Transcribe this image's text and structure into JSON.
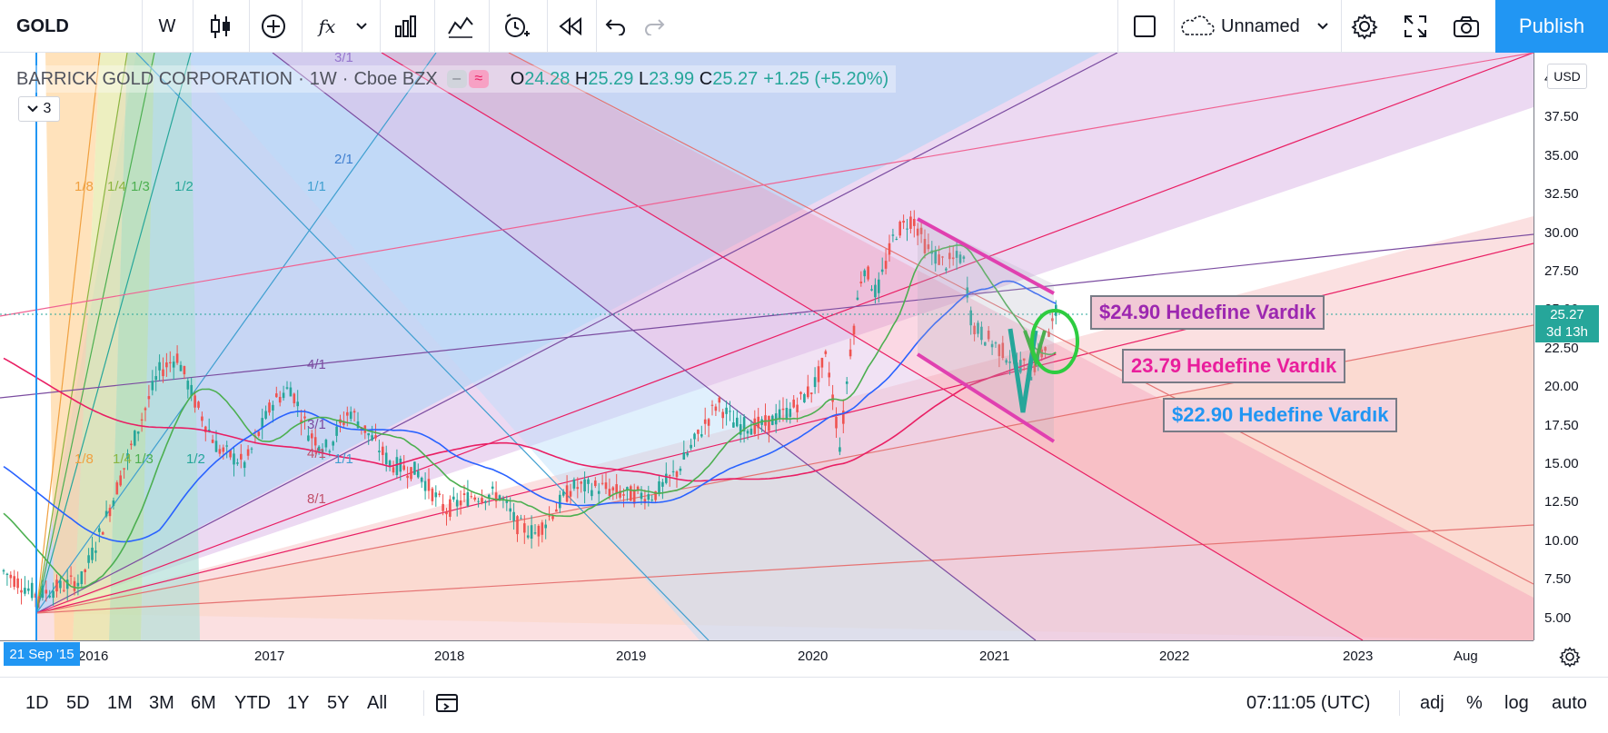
{
  "toolbar": {
    "symbol": "GOLD",
    "interval": "W",
    "candles_icon": "candles-icon",
    "compare_icon": "plus-circle-icon",
    "indicators_label": "fx",
    "layout_name": "Unnamed",
    "publish_label": "Publish"
  },
  "legend": {
    "name": "BARRICK GOLD CORPORATION",
    "dot1": "·",
    "interval": "1W",
    "dot2": "·",
    "exchange": "Cboe BZX",
    "o_label": "O",
    "o": "24.28",
    "h_label": "H",
    "h": "25.29",
    "l_label": "L",
    "l": "23.99",
    "c_label": "C",
    "c": "25.27",
    "change": "+1.25 (+5.20%)",
    "pill_left": "–",
    "pill_right": "≈",
    "collapse_count": "3"
  },
  "price_axis": {
    "currency": "USD",
    "ticks": [
      "40.00",
      "37.50",
      "35.00",
      "32.50",
      "30.00",
      "27.50",
      "25.00",
      "22.50",
      "20.00",
      "17.50",
      "15.00",
      "12.50",
      "10.00",
      "7.50",
      "5.00"
    ],
    "last_price": "25.27",
    "last_price_countdown": "3d 13h"
  },
  "time_axis": {
    "start_label": "21 Sep '15",
    "ticks": [
      "2016",
      "2017",
      "2018",
      "2019",
      "2020",
      "2021",
      "2022",
      "2023",
      "Aug"
    ]
  },
  "fan_labels": {
    "top_left": [
      "1/8",
      "1/4",
      "1/3",
      "1/2"
    ],
    "bottom_left": [
      "1/8",
      "1/4",
      "1/3",
      "1/2"
    ],
    "blue_top": [
      "3/1",
      "2/1",
      "1/1"
    ],
    "red_lower": [
      "4/1",
      "3/1",
      "4/1",
      "1/1",
      "8/1"
    ]
  },
  "annotations": {
    "target1": "$24.90 Hedefine Vardık",
    "target2": "23.79 Hedefine Vardık",
    "target3": "$22.90 Hedefine Vardık",
    "colors": {
      "target1": "#9c27b0",
      "target2": "#e91e9c",
      "target3": "#2196f3"
    }
  },
  "bottom_bar": {
    "ranges": [
      "1D",
      "5D",
      "1M",
      "3M",
      "6M",
      "YTD",
      "1Y",
      "5Y",
      "All"
    ],
    "clock": "07:11:05 (UTC)",
    "adj": "adj",
    "pct": "%",
    "log": "log",
    "auto": "auto"
  },
  "colors": {
    "up": "#26a69a",
    "down": "#ef5350",
    "accent": "#2196f3",
    "ma_green": "#4caf50",
    "ma_blue": "#2962ff",
    "ma_magenta": "#e91e63"
  }
}
